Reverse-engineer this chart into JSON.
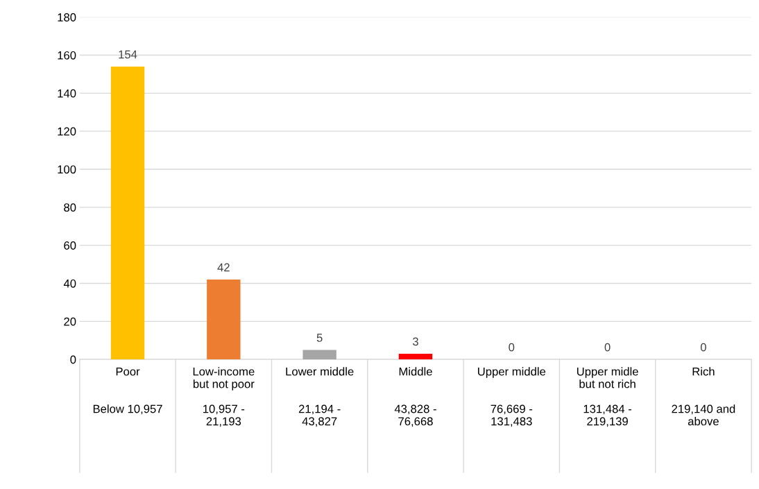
{
  "chart_data": {
    "type": "bar",
    "categories": [
      "Poor\n\n\nBelow 10,957",
      "Low-income\nbut not poor\n\n10,957 -\n21,193",
      "Lower middle\n\n\n21,194 -\n43,827",
      "Middle\n\n\n43,828 -\n76,668",
      "Upper middle\n\n\n76,669 -\n131,483",
      "Upper midle\nbut not rich\n\n131,484 -\n219,139",
      "Rich\n\n\n219,140 and\nabove"
    ],
    "values": [
      154,
      42,
      5,
      3,
      0,
      0,
      0
    ],
    "colors": [
      "#ffc000",
      "#ed7d31",
      "#a5a5a5",
      "#ff0000",
      "#a5a5a5",
      "#a5a5a5",
      "#a5a5a5"
    ],
    "ylim": [
      0,
      180
    ],
    "yticks": [
      0,
      20,
      40,
      60,
      80,
      100,
      120,
      140,
      160,
      180
    ],
    "grid": "y",
    "data_labels": true
  }
}
